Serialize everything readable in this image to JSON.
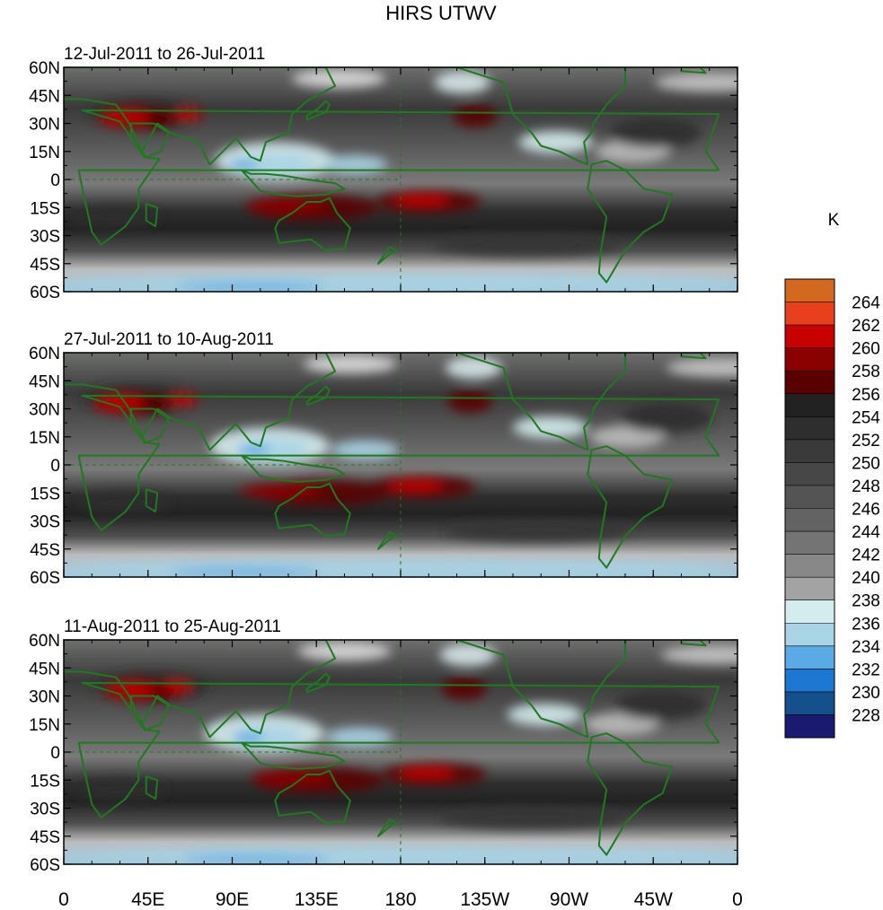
{
  "title": "HIRS UTWV",
  "units": "K",
  "lat_ticks": [
    "60N",
    "45N",
    "30N",
    "15N",
    "0",
    "15S",
    "30S",
    "45S",
    "60S"
  ],
  "lon_ticks": [
    "0",
    "45E",
    "90E",
    "135E",
    "180",
    "135W",
    "90W",
    "45W",
    "0"
  ],
  "panels": [
    {
      "subtitle": "12-Jul-2011 to 26-Jul-2011"
    },
    {
      "subtitle": "27-Jul-2011 to 10-Aug-2011"
    },
    {
      "subtitle": "11-Aug-2011 to 25-Aug-2011"
    }
  ],
  "colorbar": {
    "labels": [
      "264",
      "262",
      "260",
      "258",
      "256",
      "254",
      "252",
      "250",
      "248",
      "246",
      "244",
      "242",
      "240",
      "238",
      "236",
      "234",
      "232",
      "230",
      "228"
    ],
    "colors": [
      "#d2691e",
      "#e8401c",
      "#c80000",
      "#8b0000",
      "#5a0000",
      "#222222",
      "#2e2e2e",
      "#3a3a3a",
      "#474747",
      "#545454",
      "#636363",
      "#747474",
      "#888888",
      "#a3a3a3",
      "#d4ecee",
      "#a8d4e6",
      "#5aaae6",
      "#1e78d2",
      "#14508c",
      "#1a1a70"
    ]
  },
  "colors": {
    "coastline": "#1e7a1e",
    "background": "#ffffff"
  }
}
